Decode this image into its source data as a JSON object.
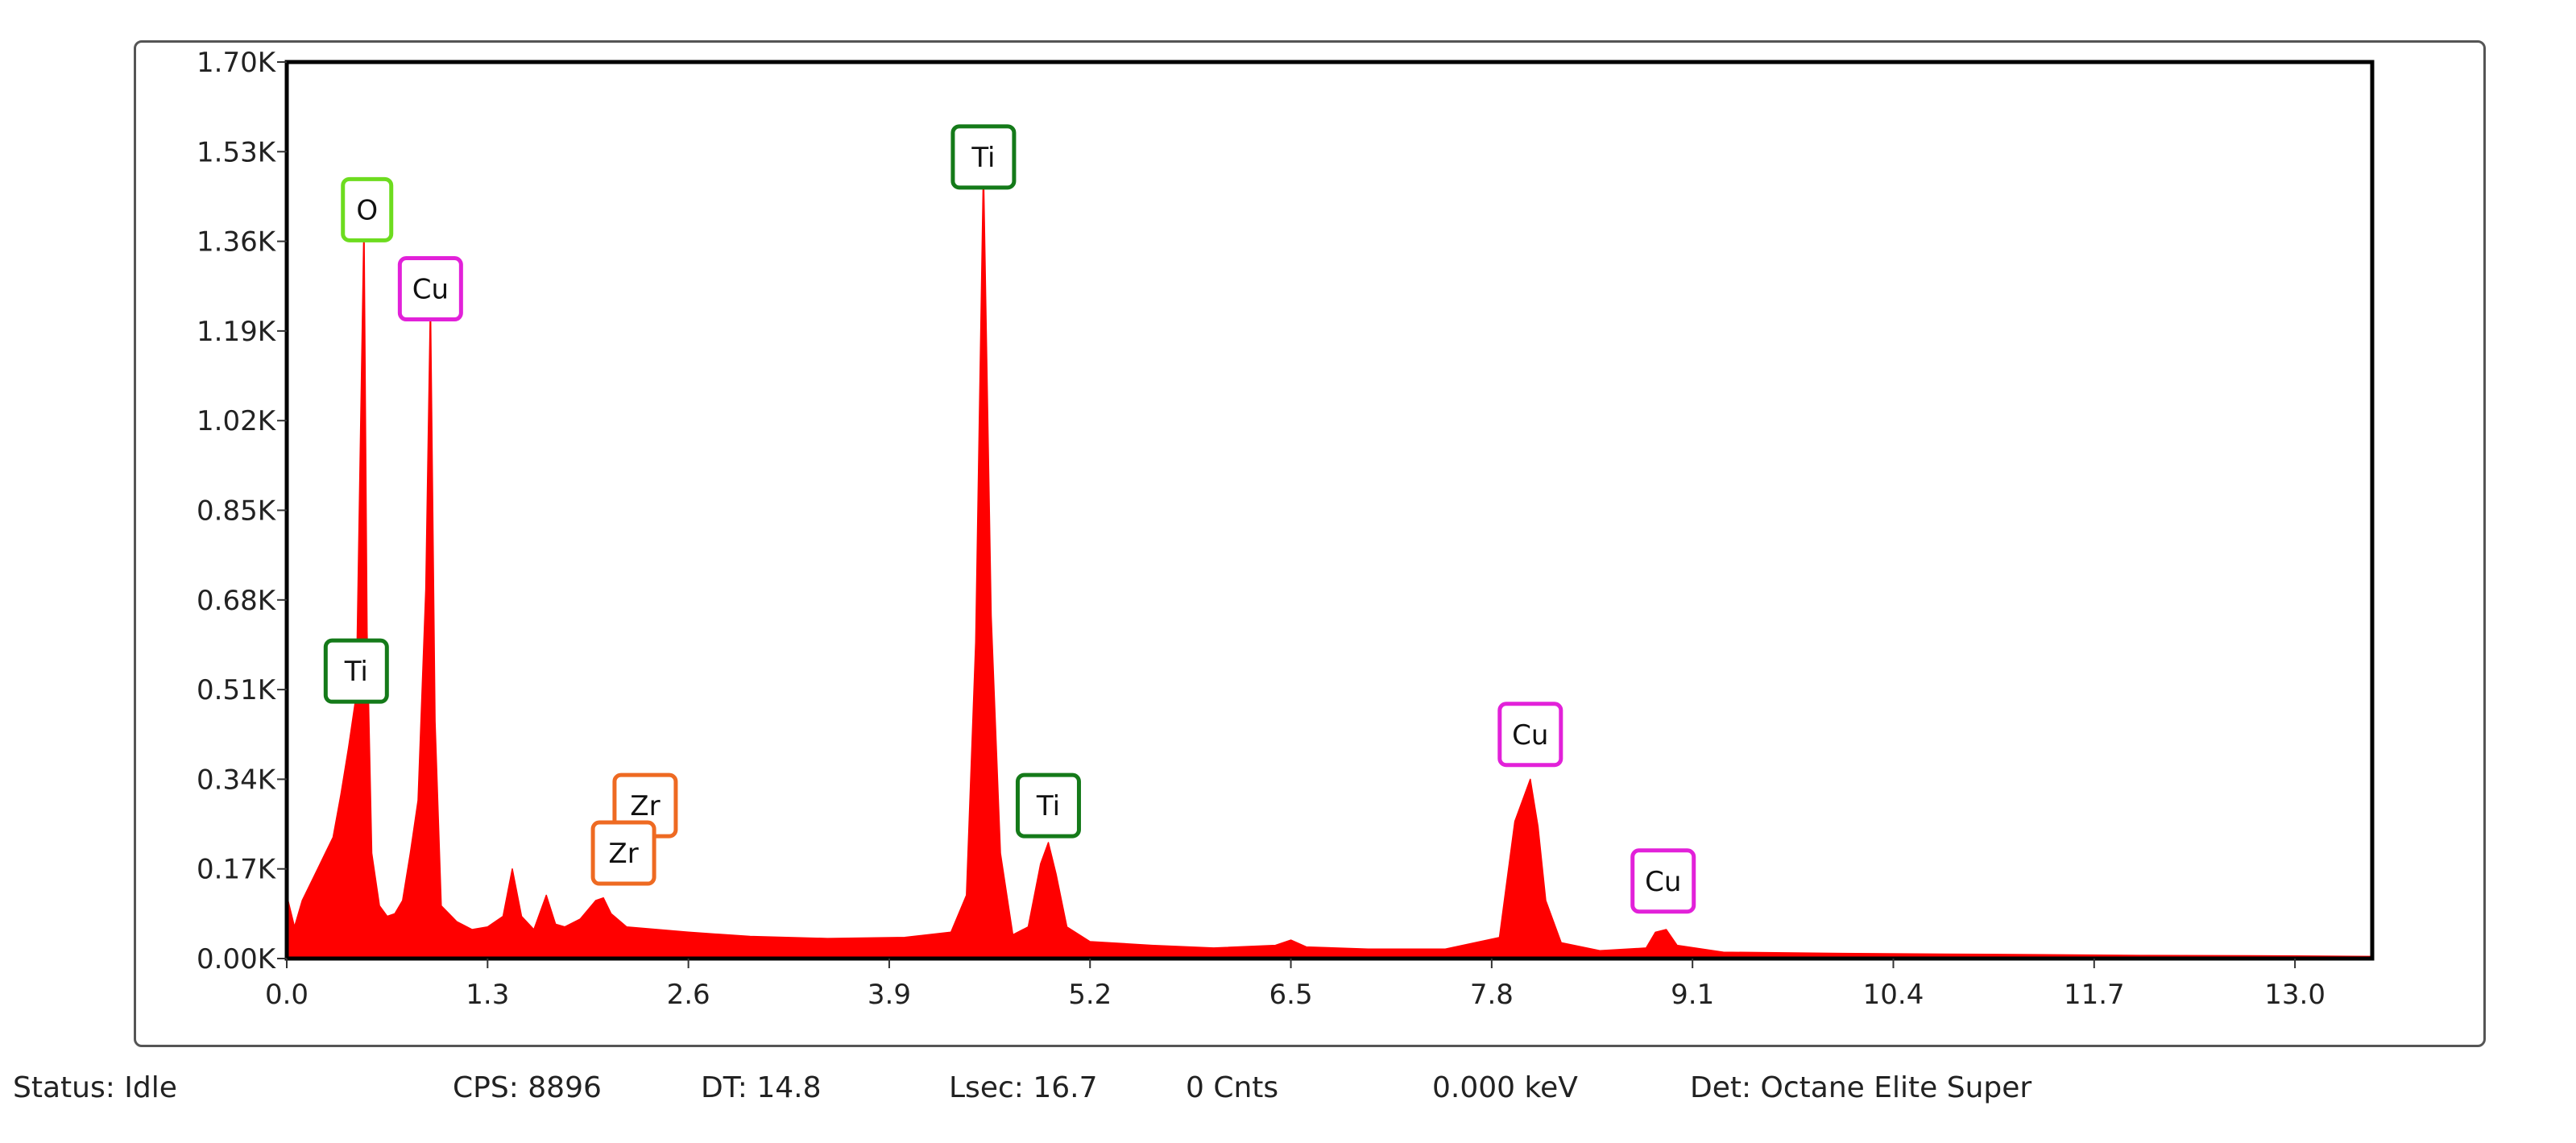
{
  "chart_data": {
    "type": "area",
    "title": "",
    "xlabel": "",
    "ylabel": "",
    "x_unit": "keV",
    "xlim": [
      0.0,
      13.5
    ],
    "ylim": [
      0.0,
      1700
    ],
    "x_tick_labels": [
      "0.0",
      "1.3",
      "2.6",
      "3.9",
      "5.2",
      "6.5",
      "7.8",
      "9.1",
      "10.4",
      "11.7",
      "13.0"
    ],
    "y_tick_labels": [
      "0.00K",
      "0.17K",
      "0.34K",
      "0.51K",
      "0.68K",
      "0.85K",
      "1.02K",
      "1.19K",
      "1.36K",
      "1.53K",
      "1.70K"
    ],
    "grid": false,
    "fill_color": "#ff0000",
    "series": [
      {
        "x": [
          0.0,
          0.05,
          0.1,
          0.15,
          0.2,
          0.25,
          0.3,
          0.35,
          0.4,
          0.45,
          0.5,
          0.52,
          0.55,
          0.6,
          0.65,
          0.7,
          0.75,
          0.8,
          0.85,
          0.9,
          0.93,
          0.96,
          1.0,
          1.1,
          1.2,
          1.3,
          1.4,
          1.46,
          1.52,
          1.6,
          1.68,
          1.74,
          1.8,
          1.9,
          2.0,
          2.05,
          2.1,
          2.2,
          2.4,
          2.6,
          3.0,
          3.5,
          4.0,
          4.3,
          4.4,
          4.46,
          4.51,
          4.56,
          4.62,
          4.7,
          4.8,
          4.88,
          4.93,
          4.98,
          5.05,
          5.2,
          5.6,
          6.0,
          6.4,
          6.5,
          6.6,
          7.0,
          7.5,
          7.85,
          7.95,
          8.05,
          8.1,
          8.15,
          8.25,
          8.5,
          8.8,
          8.86,
          8.93,
          9.0,
          9.3,
          10.0,
          11.0,
          12.0,
          13.0,
          13.5
        ],
        "y": [
          120,
          60,
          110,
          140,
          170,
          200,
          230,
          310,
          400,
          500,
          1400,
          620,
          200,
          100,
          80,
          85,
          110,
          200,
          300,
          700,
          1250,
          450,
          100,
          70,
          55,
          60,
          80,
          170,
          80,
          55,
          120,
          65,
          60,
          75,
          110,
          115,
          85,
          60,
          55,
          50,
          42,
          38,
          40,
          50,
          120,
          600,
          1500,
          650,
          200,
          45,
          60,
          180,
          220,
          160,
          60,
          32,
          25,
          20,
          25,
          35,
          22,
          18,
          18,
          40,
          260,
          340,
          250,
          110,
          30,
          15,
          20,
          50,
          55,
          25,
          12,
          10,
          8,
          6,
          5,
          4
        ]
      }
    ],
    "annotations": [
      {
        "label": "O",
        "x": 0.52,
        "y": 1420,
        "color": "#6ddc1f"
      },
      {
        "label": "Cu",
        "x": 0.93,
        "y": 1270,
        "color": "#e221d9"
      },
      {
        "label": "Ti",
        "x": 0.45,
        "y": 545,
        "color": "#147a19"
      },
      {
        "label": "Zr",
        "x": 2.32,
        "y": 290,
        "color": "#ee6a22"
      },
      {
        "label": "Zr",
        "x": 2.18,
        "y": 200,
        "color": "#ee6a22"
      },
      {
        "label": "Ti",
        "x": 4.51,
        "y": 1520,
        "color": "#147a19"
      },
      {
        "label": "Ti",
        "x": 4.93,
        "y": 290,
        "color": "#147a19"
      },
      {
        "label": "Cu",
        "x": 8.05,
        "y": 425,
        "color": "#e221d9"
      },
      {
        "label": "Cu",
        "x": 8.91,
        "y": 147,
        "color": "#e221d9"
      }
    ]
  },
  "status": {
    "state": "Status: Idle",
    "cps": "CPS: 8896",
    "dt": "DT: 14.8",
    "lsec": "Lsec: 16.7",
    "counts": "0 Cnts",
    "energy": "0.000 keV",
    "detector": "Det: Octane Elite Super"
  }
}
